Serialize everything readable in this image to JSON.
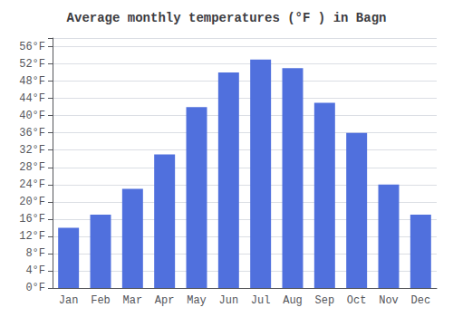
{
  "chart_data": {
    "type": "bar",
    "title": "Average monthly temperatures (°F ) in Bagn",
    "categories": [
      "Jan",
      "Feb",
      "Mar",
      "Apr",
      "May",
      "Jun",
      "Jul",
      "Aug",
      "Sep",
      "Oct",
      "Nov",
      "Dec"
    ],
    "values": [
      14,
      17,
      23,
      31,
      42,
      50,
      53,
      51,
      43,
      36,
      24,
      17
    ],
    "ylim": [
      0,
      58
    ],
    "yticks": [
      {
        "value": 0,
        "label": "0°F"
      },
      {
        "value": 4,
        "label": "4°F"
      },
      {
        "value": 8,
        "label": "8°F"
      },
      {
        "value": 12,
        "label": "12°F"
      },
      {
        "value": 16,
        "label": "16°F"
      },
      {
        "value": 20,
        "label": "20°F"
      },
      {
        "value": 24,
        "label": "24°F"
      },
      {
        "value": 28,
        "label": "28°F"
      },
      {
        "value": 32,
        "label": "32°F"
      },
      {
        "value": 36,
        "label": "36°F"
      },
      {
        "value": 40,
        "label": "40°F"
      },
      {
        "value": 44,
        "label": "44°F"
      },
      {
        "value": 48,
        "label": "48°F"
      },
      {
        "value": 52,
        "label": "52°F"
      },
      {
        "value": 56,
        "label": "56°F"
      }
    ],
    "grid": true
  }
}
